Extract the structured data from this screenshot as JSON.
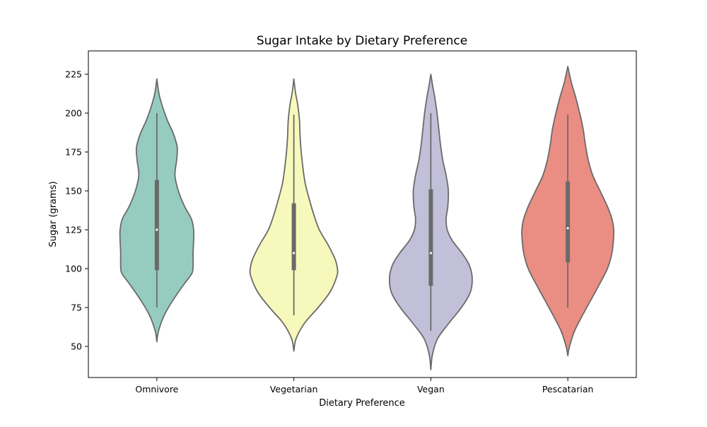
{
  "chart_data": {
    "type": "violin",
    "title": "Sugar Intake by Dietary Preference",
    "xlabel": "Dietary Preference",
    "ylabel": "Sugar (grams)",
    "ylim": [
      30,
      240
    ],
    "yticks": [
      50,
      75,
      100,
      125,
      150,
      175,
      200,
      225
    ],
    "grid": false,
    "categories": [
      "Omnivore",
      "Vegetarian",
      "Vegan",
      "Pescatarian"
    ],
    "colors": [
      "#96cbc0",
      "#f7f8bb",
      "#c2bfd8",
      "#ea8d83"
    ],
    "outline_color": "#6a6a6a",
    "series": [
      {
        "category": "Omnivore",
        "kde_extent": [
          53,
          222
        ],
        "whisker": [
          75,
          200
        ],
        "q1": 99,
        "median": 125,
        "q3": 157,
        "density": [
          [
            53,
            0.0
          ],
          [
            60,
            0.03
          ],
          [
            70,
            0.13
          ],
          [
            80,
            0.29
          ],
          [
            90,
            0.48
          ],
          [
            97,
            0.62
          ],
          [
            102,
            0.64
          ],
          [
            110,
            0.64
          ],
          [
            118,
            0.65
          ],
          [
            125,
            0.65
          ],
          [
            132,
            0.61
          ],
          [
            140,
            0.49
          ],
          [
            150,
            0.38
          ],
          [
            160,
            0.32
          ],
          [
            170,
            0.35
          ],
          [
            178,
            0.36
          ],
          [
            187,
            0.29
          ],
          [
            195,
            0.19
          ],
          [
            203,
            0.11
          ],
          [
            212,
            0.04
          ],
          [
            222,
            0.0
          ]
        ]
      },
      {
        "category": "Vegetarian",
        "kde_extent": [
          47,
          222
        ],
        "whisker": [
          70,
          199
        ],
        "q1": 99,
        "median": 110,
        "q3": 142,
        "density": [
          [
            47,
            0.0
          ],
          [
            55,
            0.04
          ],
          [
            65,
            0.19
          ],
          [
            75,
            0.43
          ],
          [
            85,
            0.64
          ],
          [
            95,
            0.76
          ],
          [
            100,
            0.77
          ],
          [
            106,
            0.73
          ],
          [
            115,
            0.61
          ],
          [
            125,
            0.45
          ],
          [
            135,
            0.35
          ],
          [
            145,
            0.27
          ],
          [
            155,
            0.2
          ],
          [
            165,
            0.16
          ],
          [
            175,
            0.13
          ],
          [
            185,
            0.11
          ],
          [
            195,
            0.1
          ],
          [
            205,
            0.07
          ],
          [
            213,
            0.03
          ],
          [
            222,
            0.0
          ]
        ]
      },
      {
        "category": "Vegan",
        "kde_extent": [
          35,
          225
        ],
        "whisker": [
          60,
          200
        ],
        "q1": 89,
        "median": 110,
        "q3": 151,
        "density": [
          [
            35,
            0.0
          ],
          [
            45,
            0.03
          ],
          [
            55,
            0.12
          ],
          [
            65,
            0.32
          ],
          [
            75,
            0.54
          ],
          [
            85,
            0.7
          ],
          [
            95,
            0.73
          ],
          [
            103,
            0.67
          ],
          [
            110,
            0.55
          ],
          [
            118,
            0.38
          ],
          [
            125,
            0.29
          ],
          [
            132,
            0.27
          ],
          [
            140,
            0.3
          ],
          [
            150,
            0.31
          ],
          [
            160,
            0.27
          ],
          [
            170,
            0.21
          ],
          [
            180,
            0.17
          ],
          [
            190,
            0.14
          ],
          [
            200,
            0.11
          ],
          [
            210,
            0.07
          ],
          [
            218,
            0.03
          ],
          [
            225,
            0.0
          ]
        ]
      },
      {
        "category": "Pescatarian",
        "kde_extent": [
          44,
          230
        ],
        "whisker": [
          75,
          199
        ],
        "q1": 104,
        "median": 126,
        "q3": 156,
        "density": [
          [
            44,
            0.0
          ],
          [
            50,
            0.03
          ],
          [
            60,
            0.12
          ],
          [
            70,
            0.26
          ],
          [
            80,
            0.41
          ],
          [
            90,
            0.56
          ],
          [
            100,
            0.7
          ],
          [
            110,
            0.78
          ],
          [
            120,
            0.81
          ],
          [
            126,
            0.81
          ],
          [
            132,
            0.78
          ],
          [
            140,
            0.7
          ],
          [
            150,
            0.57
          ],
          [
            160,
            0.44
          ],
          [
            170,
            0.36
          ],
          [
            180,
            0.31
          ],
          [
            190,
            0.27
          ],
          [
            200,
            0.21
          ],
          [
            210,
            0.14
          ],
          [
            220,
            0.06
          ],
          [
            230,
            0.0
          ]
        ]
      }
    ]
  }
}
